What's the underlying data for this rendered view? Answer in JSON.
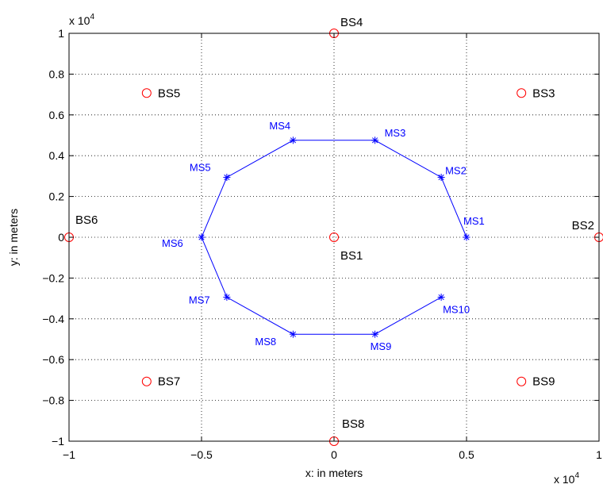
{
  "chart_data": {
    "type": "scatter",
    "xlabel": "x: in meters",
    "ylabel": "y: in meters",
    "x_multiplier": "x 10",
    "x_exponent": "4",
    "y_multiplier": "x 10",
    "y_exponent": "4",
    "xlim": [
      -10000,
      10000
    ],
    "ylim": [
      -10000,
      10000
    ],
    "grid": true,
    "x_ticks": [
      -10000,
      -5000,
      0,
      5000,
      10000
    ],
    "x_tick_labels": [
      "−1",
      "−0.5",
      "0",
      "0.5",
      "1"
    ],
    "y_ticks": [
      -10000,
      -8000,
      -6000,
      -4000,
      -2000,
      0,
      2000,
      4000,
      6000,
      8000,
      10000
    ],
    "y_tick_labels": [
      "−1",
      "−0.8",
      "−0.6",
      "−0.4",
      "−0.2",
      "0",
      "0.2",
      "0.4",
      "0.6",
      "0.8",
      "1"
    ],
    "series": [
      {
        "marker": "circle",
        "color": "#ff0000",
        "points": [
          {
            "label": "BS1",
            "x": 0,
            "y": 0
          },
          {
            "label": "BS2",
            "x": 10000,
            "y": 0
          },
          {
            "label": "BS3",
            "x": 7071,
            "y": 7071
          },
          {
            "label": "BS4",
            "x": 0,
            "y": 10000
          },
          {
            "label": "BS5",
            "x": -7071,
            "y": 7071
          },
          {
            "label": "BS6",
            "x": -10000,
            "y": 0
          },
          {
            "label": "BS7",
            "x": -7071,
            "y": -7071
          },
          {
            "label": "BS8",
            "x": 0,
            "y": -10000
          },
          {
            "label": "BS9",
            "x": 7071,
            "y": -7071
          }
        ]
      },
      {
        "marker": "star",
        "line": true,
        "color": "#0000ff",
        "points": [
          {
            "label": "MS1",
            "x": 5000,
            "y": 0
          },
          {
            "label": "MS2",
            "x": 4045,
            "y": 2939
          },
          {
            "label": "MS3",
            "x": 1545,
            "y": 4755
          },
          {
            "label": "MS4",
            "x": -1545,
            "y": 4755
          },
          {
            "label": "MS5",
            "x": -4045,
            "y": 2939
          },
          {
            "label": "MS6",
            "x": -5000,
            "y": 0
          },
          {
            "label": "MS7",
            "x": -4045,
            "y": -2939
          },
          {
            "label": "MS8",
            "x": -1545,
            "y": -4755
          },
          {
            "label": "MS9",
            "x": 1545,
            "y": -4755
          },
          {
            "label": "MS10",
            "x": 4045,
            "y": -2939
          }
        ]
      }
    ]
  }
}
